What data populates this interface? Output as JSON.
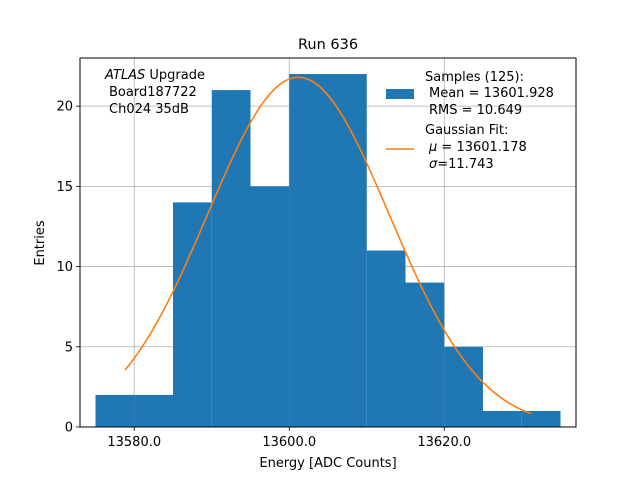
{
  "chart_data": {
    "type": "bar",
    "title": "Run 636",
    "xlabel": "Energy [ADC Counts]",
    "ylabel": "Entries",
    "xlim": [
      13573,
      13637
    ],
    "ylim": [
      0,
      23
    ],
    "grid": true,
    "bin_edges": [
      13575,
      13580,
      13585,
      13590,
      13595,
      13600,
      13605,
      13610,
      13615,
      13620,
      13625,
      13630,
      13635
    ],
    "bin_counts": [
      2,
      2,
      14,
      21,
      15,
      22,
      22,
      11,
      9,
      5,
      1,
      1
    ],
    "bar_color": "#1f77b4",
    "fit_color": "#ff7f0e",
    "fit": {
      "mu": 13601.178,
      "sigma": 11.743,
      "amplitude": 21.8,
      "x_start": 13578.8,
      "x_end": 13631.2
    },
    "x_ticks": [
      13580,
      13600,
      13620
    ],
    "x_tick_labels": [
      "13580.0",
      "13600.0",
      "13620.0"
    ],
    "y_ticks": [
      0,
      5,
      10,
      15,
      20
    ],
    "y_tick_labels": [
      "0",
      "5",
      "10",
      "15",
      "20"
    ],
    "annotation": {
      "italic": "ATLAS",
      "line1_rest": " Upgrade",
      "line2": "Board187722",
      "line3": "Ch024 35dB"
    },
    "legend": {
      "position": "top-right",
      "samples_title": "Samples (125):",
      "samples_mean": "Mean = 13601.928",
      "samples_rms": "RMS = 10.649",
      "fit_title": "Gaussian Fit:",
      "fit_mu_sym": "μ",
      "fit_mu_val": " = 13601.178",
      "fit_sigma_sym": "σ",
      "fit_sigma_val": "=11.743"
    }
  }
}
